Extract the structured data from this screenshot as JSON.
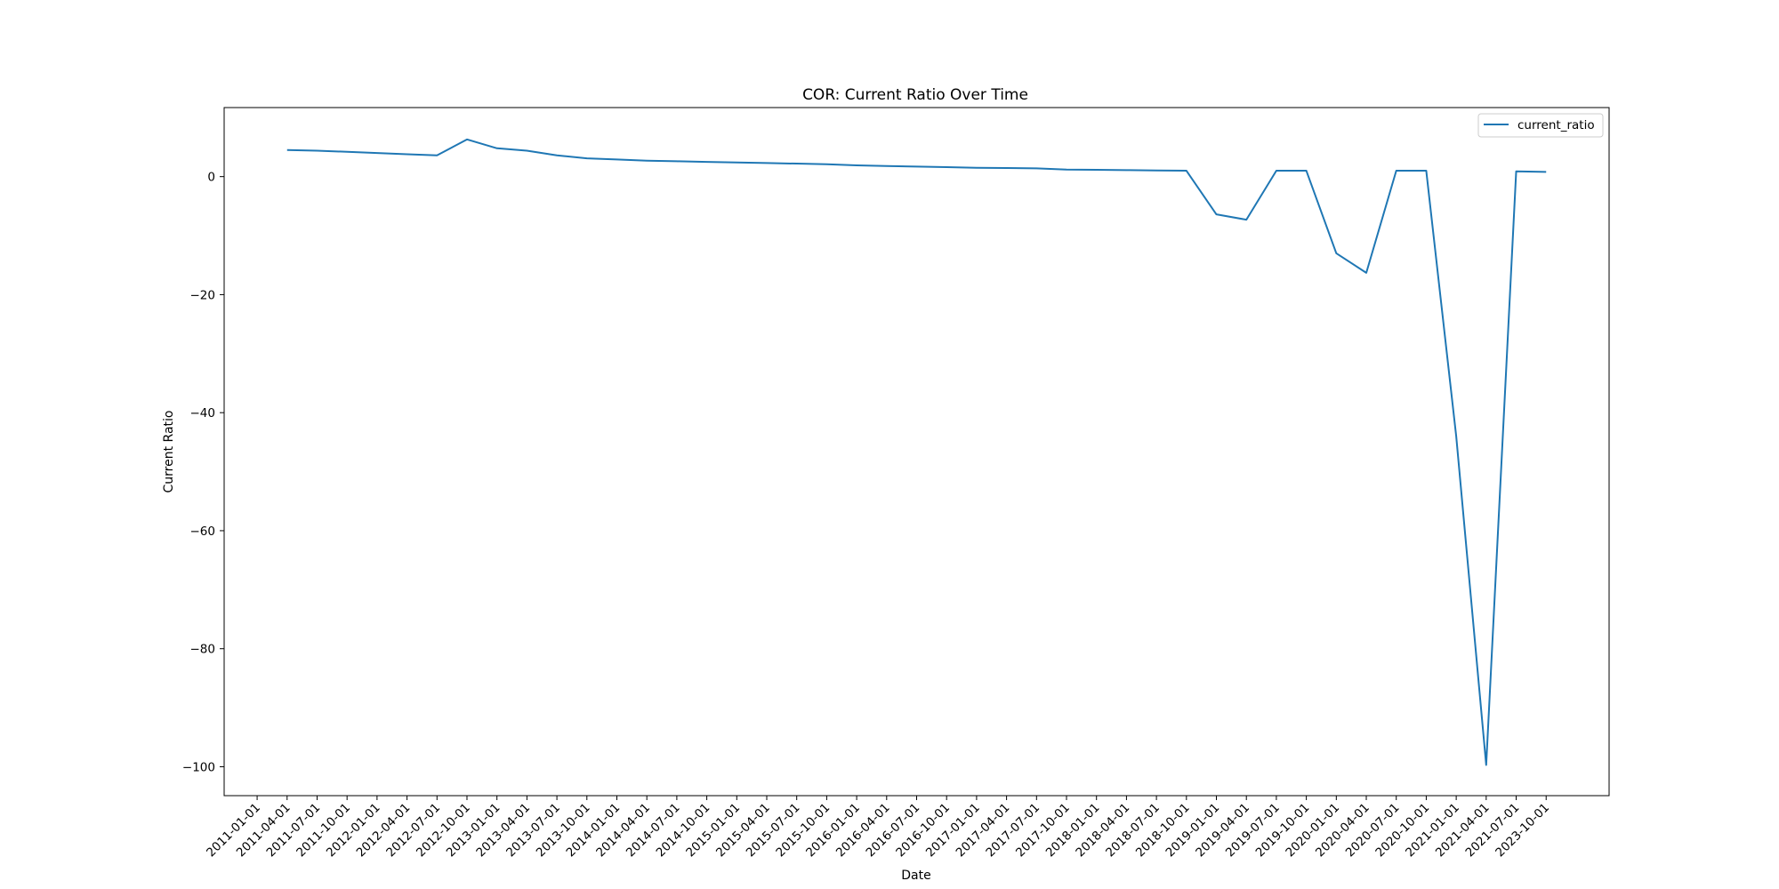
{
  "chart_data": {
    "type": "line",
    "title": "COR: Current Ratio Over Time",
    "xlabel": "Date",
    "ylabel": "Current Ratio",
    "x_ticks": [
      "2011-01-01",
      "2011-04-01",
      "2011-07-01",
      "2011-10-01",
      "2012-01-01",
      "2012-04-01",
      "2012-07-01",
      "2012-10-01",
      "2013-01-01",
      "2013-04-01",
      "2013-07-01",
      "2013-10-01",
      "2014-01-01",
      "2014-04-01",
      "2014-07-01",
      "2014-10-01",
      "2015-01-01",
      "2015-04-01",
      "2015-07-01",
      "2015-10-01",
      "2016-01-01",
      "2016-04-01",
      "2016-07-01",
      "2016-10-01",
      "2017-01-01",
      "2017-04-01",
      "2017-07-01",
      "2017-10-01",
      "2018-01-01",
      "2018-04-01",
      "2018-07-01",
      "2018-10-01",
      "2019-01-01",
      "2019-04-01",
      "2019-07-01",
      "2019-10-01",
      "2020-01-01",
      "2020-04-01",
      "2020-07-01",
      "2020-10-01",
      "2021-01-01",
      "2021-04-01",
      "2021-07-01",
      "2023-10-01"
    ],
    "y_ticks": [
      0,
      -20,
      -40,
      -60,
      -80,
      -100
    ],
    "ylim": [
      -104.9,
      11.7
    ],
    "xlim_ticks": [
      -1.1,
      45.1
    ],
    "grid": false,
    "legend_position": "upper-right",
    "series": [
      {
        "name": "current_ratio",
        "color": "#1f77b4",
        "x": [
          "2011-04-01",
          "2011-07-01",
          "2011-10-01",
          "2012-01-01",
          "2012-04-01",
          "2012-07-01",
          "2012-10-01",
          "2013-01-01",
          "2013-04-01",
          "2013-07-01",
          "2013-10-01",
          "2014-01-01",
          "2014-04-01",
          "2014-07-01",
          "2014-10-01",
          "2015-01-01",
          "2015-04-01",
          "2015-07-01",
          "2015-10-01",
          "2016-01-01",
          "2016-04-01",
          "2016-07-01",
          "2016-10-01",
          "2017-01-01",
          "2017-04-01",
          "2017-07-01",
          "2017-10-01",
          "2018-01-01",
          "2018-04-01",
          "2018-07-01",
          "2018-10-01",
          "2019-01-01",
          "2019-04-01",
          "2019-07-01",
          "2019-10-01",
          "2020-01-01",
          "2020-04-01",
          "2020-07-01",
          "2020-10-01",
          "2021-01-01",
          "2021-04-01",
          "2021-07-01",
          "2023-10-01"
        ],
        "values": [
          4.5,
          4.4,
          4.2,
          4.0,
          3.8,
          3.6,
          6.3,
          4.8,
          4.4,
          3.6,
          3.1,
          2.9,
          2.7,
          2.6,
          2.5,
          2.4,
          2.3,
          2.2,
          2.1,
          1.9,
          1.8,
          1.7,
          1.6,
          1.5,
          1.45,
          1.4,
          1.2,
          1.15,
          1.1,
          1.05,
          1.0,
          -6.4,
          -7.3,
          1.0,
          1.0,
          -13.0,
          -16.3,
          1.0,
          1.0,
          -44.0,
          -99.7,
          0.9,
          0.8
        ]
      }
    ]
  }
}
